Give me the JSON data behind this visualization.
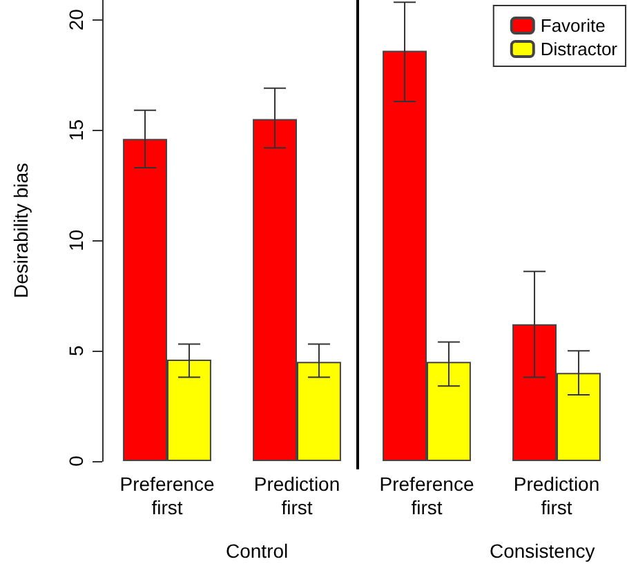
{
  "chart_data": {
    "type": "bar",
    "ylabel": "Desirability bias",
    "categories": [
      "Preference\nfirst",
      "Prediction\nfirst",
      "Preference\nfirst",
      "Prediction\nfirst"
    ],
    "series": [
      {
        "name": "Favorite",
        "color": "#ff0000",
        "values": [
          14.6,
          15.5,
          18.6,
          6.2
        ],
        "errors": [
          [
            13.3,
            15.9
          ],
          [
            14.2,
            16.9
          ],
          [
            16.3,
            20.8
          ],
          [
            3.8,
            8.6
          ]
        ]
      },
      {
        "name": "Distractor",
        "color": "#ffff00",
        "values": [
          4.6,
          4.5,
          4.5,
          4.0
        ],
        "errors": [
          [
            3.8,
            5.3
          ],
          [
            3.8,
            5.3
          ],
          [
            3.4,
            5.4
          ],
          [
            3.0,
            5.0
          ]
        ]
      }
    ],
    "annotations": [
      "Control",
      "Consistency"
    ],
    "ylim": [
      0,
      20.9
    ],
    "yticks": [
      0,
      5,
      10,
      15,
      20
    ],
    "grid": false,
    "legend": "top right"
  }
}
